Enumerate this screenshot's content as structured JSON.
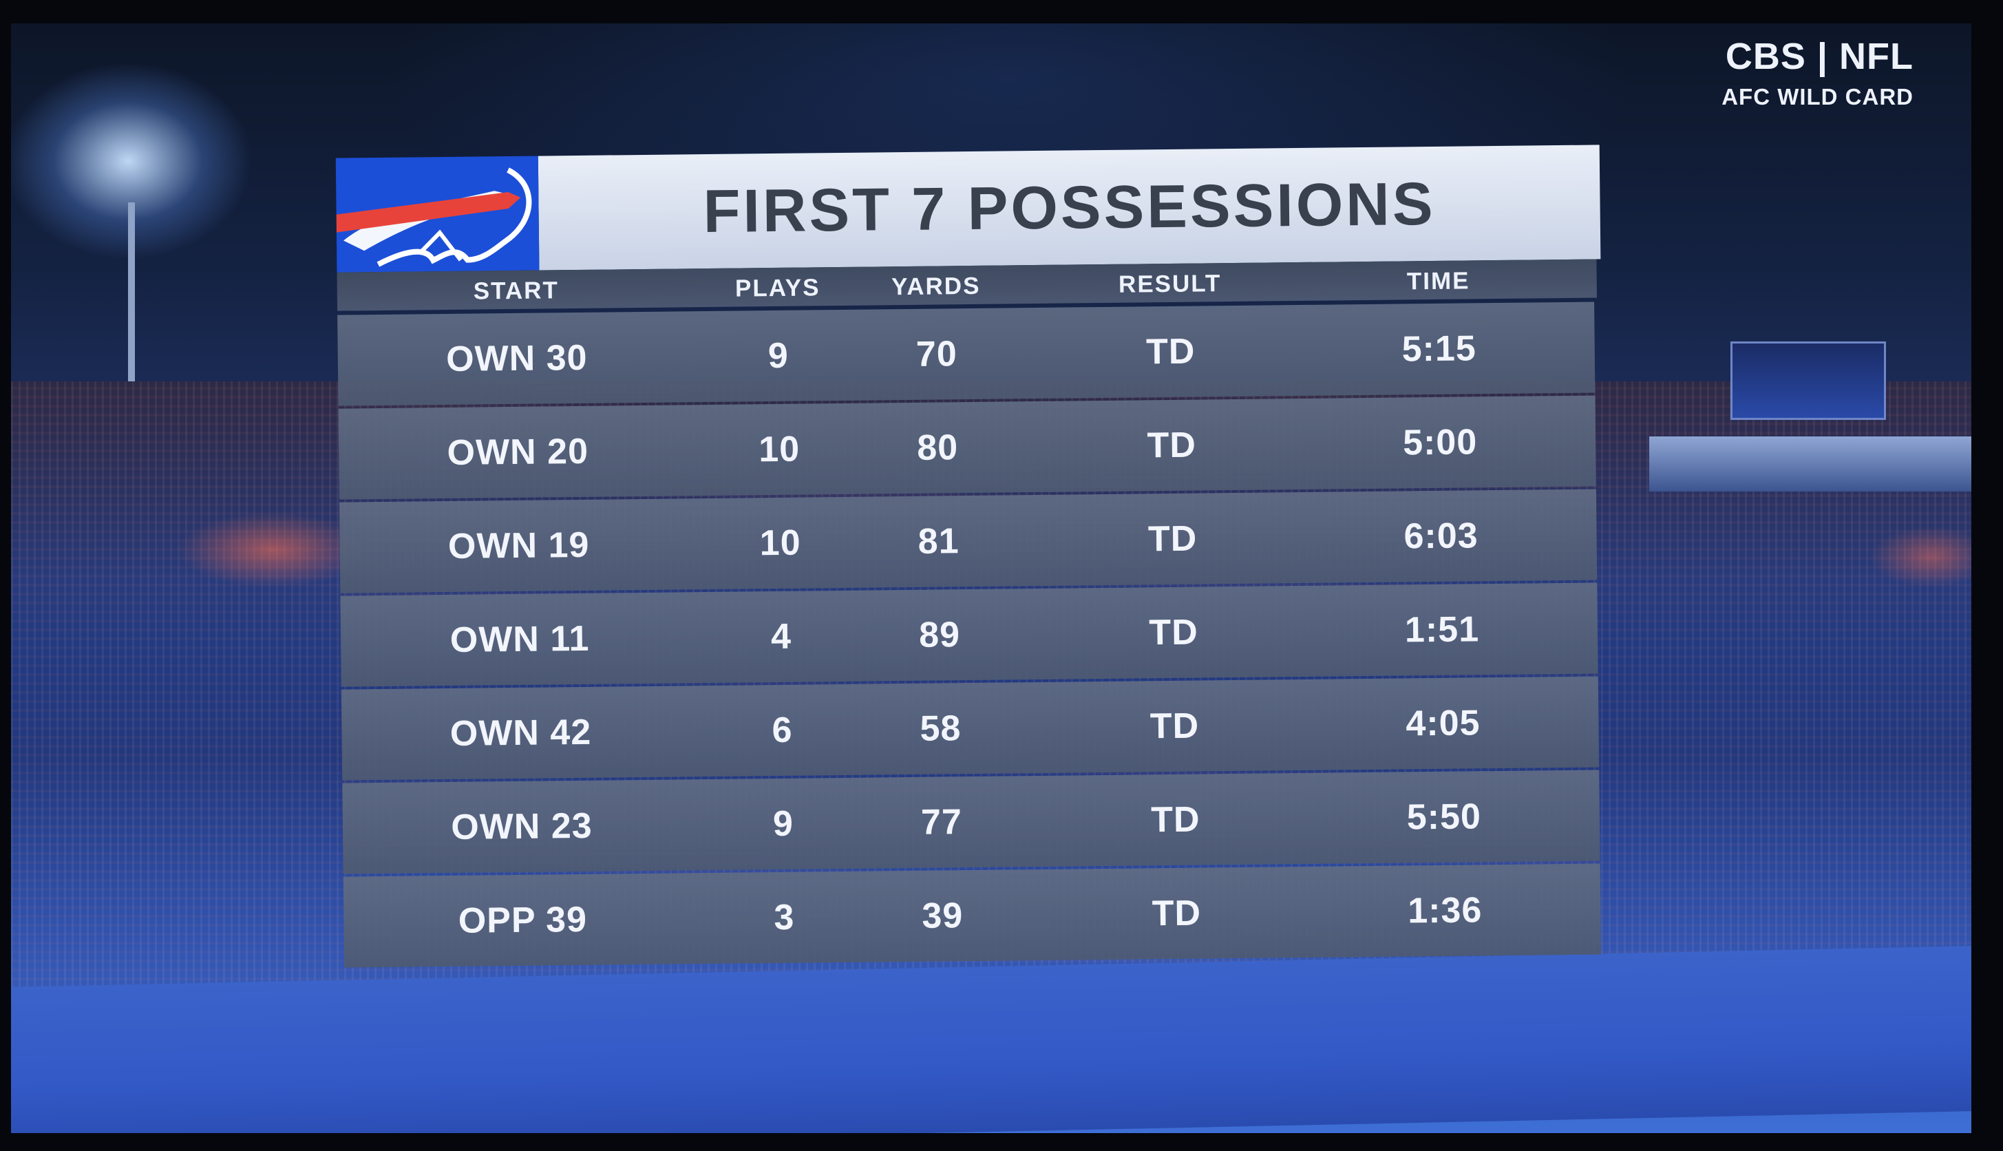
{
  "network_bug": {
    "network": "CBS | NFL",
    "game": "AFC WILD CARD"
  },
  "graphic": {
    "title": "FIRST 7 POSSESSIONS",
    "team_logo_icon": "bills-buffalo-icon",
    "columns": {
      "start": "START",
      "plays": "PLAYS",
      "yards": "YARDS",
      "result": "RESULT",
      "time": "TIME"
    },
    "rows": [
      {
        "start": "OWN 30",
        "plays": "9",
        "yards": "70",
        "result": "TD",
        "time": "5:15"
      },
      {
        "start": "OWN 20",
        "plays": "10",
        "yards": "80",
        "result": "TD",
        "time": "5:00"
      },
      {
        "start": "OWN 19",
        "plays": "10",
        "yards": "81",
        "result": "TD",
        "time": "6:03"
      },
      {
        "start": "OWN 11",
        "plays": "4",
        "yards": "89",
        "result": "TD",
        "time": "1:51"
      },
      {
        "start": "OWN 42",
        "plays": "6",
        "yards": "58",
        "result": "TD",
        "time": "4:05"
      },
      {
        "start": "OWN 23",
        "plays": "9",
        "yards": "77",
        "result": "TD",
        "time": "5:50"
      },
      {
        "start": "OPP 39",
        "plays": "3",
        "yards": "39",
        "result": "TD",
        "time": "1:36"
      }
    ]
  },
  "colors": {
    "bills_blue": "#1c4fd8",
    "bills_red": "#e8433a",
    "title_text": "#39414f"
  }
}
